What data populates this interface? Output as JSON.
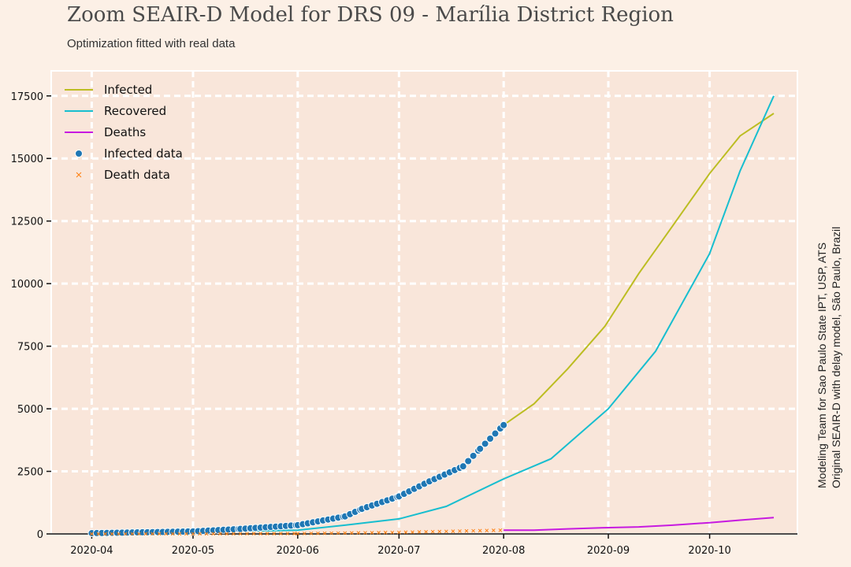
{
  "title": "Zoom SEAIR-D Model for DRS 09 - Marília District Region",
  "subtitle": "Optimization fitted with real data",
  "credits": [
    "Modeling Team for Sao Paulo State IPT, USP, ATS",
    "Original SEAIR-D with delay model, São Paulo, Brazil"
  ],
  "colors": {
    "infected": "#bcbd22",
    "recovered": "#17becf",
    "deaths": "#c71ae0",
    "infected_data": "#1f77b4",
    "death_data": "#ff7f0e",
    "plot_bg": "#f9e6da",
    "grid": "#ffffff"
  },
  "chart_data": {
    "type": "line",
    "title": "Zoom SEAIR-D Model for DRS 09 - Marília District Region",
    "subtitle": "Optimization fitted with real data",
    "xlabel": "",
    "ylabel": "",
    "x_range": [
      "2020-03-20",
      "2020-10-27"
    ],
    "ylim": [
      0,
      18500
    ],
    "x_ticks": [
      "2020-04",
      "2020-05",
      "2020-06",
      "2020-07",
      "2020-08",
      "2020-09",
      "2020-10"
    ],
    "y_ticks": [
      "0",
      "2500",
      "5000",
      "7500",
      "10000",
      "12500",
      "15000",
      "17500"
    ],
    "y_tick_values": [
      0,
      2500,
      5000,
      7500,
      10000,
      12500,
      15000,
      17500
    ],
    "grid": true,
    "legend_position": "top-left",
    "legend": [
      "Infected",
      "Recovered",
      "Deaths",
      "Infected data",
      "Death data"
    ],
    "series": [
      {
        "name": "Infected",
        "kind": "line",
        "color": "#bcbd22",
        "x": [
          "2020-08-01",
          "2020-08-10",
          "2020-08-20",
          "2020-08-31",
          "2020-09-10",
          "2020-09-20",
          "2020-10-01",
          "2020-10-10",
          "2020-10-20"
        ],
        "y": [
          4350,
          5200,
          6600,
          8300,
          10400,
          12300,
          14400,
          15900,
          16800
        ]
      },
      {
        "name": "Recovered",
        "kind": "line",
        "color": "#17becf",
        "x": [
          "2020-04-01",
          "2020-05-01",
          "2020-06-01",
          "2020-06-15",
          "2020-07-01",
          "2020-07-15",
          "2020-08-01",
          "2020-08-15",
          "2020-09-01",
          "2020-09-15",
          "2020-10-01",
          "2020-10-10",
          "2020-10-20"
        ],
        "y": [
          0,
          80,
          150,
          350,
          600,
          1100,
          2200,
          3000,
          5000,
          7300,
          11200,
          14500,
          17500
        ]
      },
      {
        "name": "Deaths",
        "kind": "line",
        "color": "#c71ae0",
        "x": [
          "2020-08-01",
          "2020-08-10",
          "2020-08-20",
          "2020-08-31",
          "2020-09-10",
          "2020-09-20",
          "2020-10-01",
          "2020-10-10",
          "2020-10-20"
        ],
        "y": [
          150,
          150,
          200,
          250,
          280,
          350,
          450,
          550,
          650
        ]
      },
      {
        "name": "Infected data",
        "kind": "scatter",
        "color": "#1f77b4",
        "x": [
          "2020-04-01",
          "2020-05-01",
          "2020-05-15",
          "2020-06-01",
          "2020-06-15",
          "2020-06-20",
          "2020-07-01",
          "2020-07-10",
          "2020-07-20",
          "2020-07-25",
          "2020-08-01"
        ],
        "y": [
          30,
          100,
          200,
          350,
          700,
          1000,
          1500,
          2100,
          2700,
          3400,
          4350
        ]
      },
      {
        "name": "Death data",
        "kind": "scatter",
        "color": "#ff7f0e",
        "x": [
          "2020-04-01",
          "2020-05-01",
          "2020-06-01",
          "2020-07-01",
          "2020-08-01"
        ],
        "y": [
          0,
          5,
          15,
          60,
          150
        ]
      }
    ]
  }
}
